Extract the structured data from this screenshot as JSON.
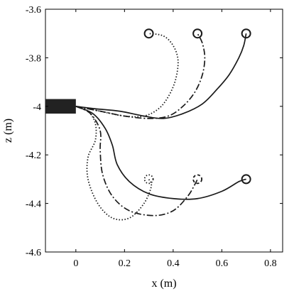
{
  "chart_data": {
    "type": "line",
    "xlabel": "x (m)",
    "ylabel": "z (m)",
    "xlim": [
      -0.125,
      0.85
    ],
    "ylim": [
      -4.6,
      -3.6
    ],
    "xticks": [
      0,
      0.2,
      0.4,
      0.6,
      0.8
    ],
    "xtick_labels": [
      "0",
      "0.2",
      "0.4",
      "0.6",
      "0.8"
    ],
    "yticks": [
      -3.6,
      -3.8,
      -4.0,
      -4.2,
      -4.4,
      -4.6
    ],
    "ytick_labels": [
      "-3.6",
      "-3.8",
      "-4",
      "-4.2",
      "-4.4",
      "-4.6"
    ],
    "grid": false,
    "colors": {
      "line": "#1a1a1a",
      "block": "#222222"
    },
    "base_block": {
      "x": [
        -0.125,
        0.0
      ],
      "z": [
        -4.03,
        -3.97
      ]
    },
    "series": [
      {
        "style": "solid",
        "x": [
          0.0,
          0.08,
          0.18,
          0.28,
          0.36,
          0.44,
          0.52,
          0.58,
          0.63,
          0.67,
          0.69,
          0.7
        ],
        "y": [
          -4.0,
          -4.01,
          -4.02,
          -4.04,
          -4.05,
          -4.03,
          -3.99,
          -3.93,
          -3.87,
          -3.8,
          -3.75,
          -3.7
        ],
        "marker": {
          "x": 0.7,
          "y": -3.7,
          "style": "solid"
        }
      },
      {
        "style": "dashdot",
        "x": [
          0.0,
          0.1,
          0.2,
          0.3,
          0.38,
          0.44,
          0.49,
          0.52,
          0.53,
          0.52,
          0.5
        ],
        "y": [
          -4.0,
          -4.02,
          -4.04,
          -4.05,
          -4.04,
          -4.0,
          -3.94,
          -3.87,
          -3.8,
          -3.74,
          -3.7
        ],
        "marker": {
          "x": 0.5,
          "y": -3.7,
          "style": "solid"
        }
      },
      {
        "style": "dotted",
        "x": [
          0.0,
          0.1,
          0.2,
          0.28,
          0.34,
          0.38,
          0.41,
          0.42,
          0.4,
          0.36,
          0.3
        ],
        "y": [
          -4.0,
          -4.02,
          -4.04,
          -4.04,
          -4.01,
          -3.96,
          -3.89,
          -3.81,
          -3.75,
          -3.71,
          -3.7
        ],
        "marker": {
          "x": 0.3,
          "y": -3.7,
          "style": "solid"
        }
      },
      {
        "style": "solid",
        "x": [
          0.0,
          0.07,
          0.12,
          0.15,
          0.17,
          0.22,
          0.3,
          0.4,
          0.5,
          0.6,
          0.67,
          0.7
        ],
        "y": [
          -4.0,
          -4.03,
          -4.09,
          -4.16,
          -4.24,
          -4.31,
          -4.36,
          -4.38,
          -4.38,
          -4.35,
          -4.31,
          -4.3
        ],
        "marker": {
          "x": 0.7,
          "y": -4.3,
          "style": "solid"
        }
      },
      {
        "style": "dashdot",
        "x": [
          0.0,
          0.06,
          0.1,
          0.1,
          0.11,
          0.15,
          0.22,
          0.32,
          0.4,
          0.46,
          0.49,
          0.5
        ],
        "y": [
          -4.0,
          -4.03,
          -4.1,
          -4.18,
          -4.28,
          -4.37,
          -4.43,
          -4.45,
          -4.43,
          -4.37,
          -4.32,
          -4.3
        ],
        "marker": {
          "x": 0.5,
          "y": -4.3,
          "style": "dashed"
        }
      },
      {
        "style": "dotted",
        "x": [
          0.0,
          0.05,
          0.08,
          0.08,
          0.05,
          0.05,
          0.09,
          0.15,
          0.22,
          0.28,
          0.31,
          0.3
        ],
        "y": [
          -4.0,
          -4.02,
          -4.07,
          -4.14,
          -4.21,
          -4.3,
          -4.4,
          -4.46,
          -4.46,
          -4.4,
          -4.33,
          -4.3
        ],
        "marker": {
          "x": 0.3,
          "y": -4.3,
          "style": "dotted"
        }
      }
    ]
  }
}
